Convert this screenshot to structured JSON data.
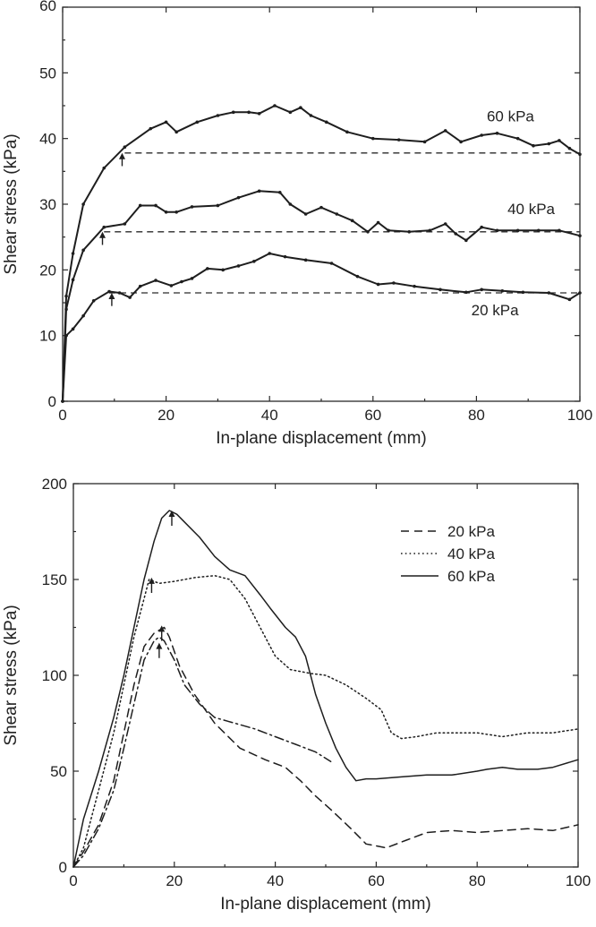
{
  "chart_data": [
    {
      "type": "line",
      "xlabel": "In-plane displacement (mm)",
      "ylabel": "Shear stress (kPa)",
      "xlim": [
        0,
        100
      ],
      "ylim": [
        0,
        60
      ],
      "xticks": [
        0,
        20,
        40,
        60,
        80,
        100
      ],
      "yticks": [
        0,
        10,
        20,
        30,
        40,
        50,
        60
      ],
      "legend": "none",
      "series": [
        {
          "name": "60 kPa",
          "style": "solid-markers",
          "x": [
            0,
            0.7,
            2,
            4,
            8,
            12,
            17,
            20,
            22,
            26,
            30,
            33,
            36,
            38,
            41,
            44,
            46,
            48,
            51,
            55,
            60,
            65,
            70,
            74,
            77,
            81,
            84,
            88,
            91,
            94,
            96,
            98,
            100
          ],
          "y": [
            0,
            16,
            22.5,
            30,
            35.5,
            38.7,
            41.5,
            42.5,
            41,
            42.5,
            43.5,
            44,
            44,
            43.8,
            45,
            44,
            44.7,
            43.5,
            42.5,
            41,
            40,
            39.8,
            39.5,
            41.2,
            39.5,
            40.5,
            40.8,
            40,
            38.9,
            39.2,
            39.7,
            38.5,
            37.6
          ]
        },
        {
          "name": "40 kPa",
          "style": "solid-markers",
          "x": [
            0,
            0.7,
            2,
            4,
            8,
            12,
            15,
            18,
            20,
            22,
            25,
            30,
            34,
            38,
            42,
            44,
            47,
            50,
            53,
            56,
            59,
            61,
            63,
            67,
            71,
            74,
            76,
            78,
            81,
            84,
            88,
            92,
            96,
            100
          ],
          "y": [
            0,
            14,
            18.5,
            23,
            26.5,
            27,
            29.8,
            29.8,
            28.8,
            28.8,
            29.6,
            29.8,
            31,
            32,
            31.8,
            30,
            28.5,
            29.5,
            28.5,
            27.5,
            25.8,
            27.2,
            26,
            25.8,
            26,
            27,
            25.5,
            24.5,
            26.5,
            26,
            26,
            26,
            26,
            25.2
          ]
        },
        {
          "name": "20 kPa",
          "style": "solid-markers",
          "x": [
            0,
            0.7,
            2,
            4,
            6,
            9,
            11,
            13,
            15,
            18,
            21,
            23,
            25,
            28,
            31,
            34,
            37,
            40,
            43,
            47,
            52,
            57,
            61,
            64,
            68,
            73,
            78,
            81,
            85,
            89,
            94,
            98,
            100
          ],
          "y": [
            0,
            10,
            11,
            13,
            15.3,
            16.7,
            16.5,
            15.8,
            17.5,
            18.4,
            17.6,
            18.2,
            18.7,
            20.2,
            20,
            20.6,
            21.3,
            22.5,
            22,
            21.5,
            21,
            19,
            17.8,
            18,
            17.5,
            17,
            16.6,
            17,
            16.8,
            16.6,
            16.5,
            15.5,
            16.5
          ]
        }
      ],
      "reference_lines": [
        {
          "label": "60 kPa",
          "y": 37.8,
          "x_start": 12,
          "x_end": 100
        },
        {
          "label": "40 kPa",
          "y": 25.8,
          "x_start": 8,
          "x_end": 100
        },
        {
          "label": "20 kPa",
          "y": 16.5,
          "x_start": 9,
          "x_end": 100
        }
      ],
      "arrows": [
        {
          "x": 11.5,
          "y_tail": 35.8,
          "y_head": 37.8
        },
        {
          "x": 7.7,
          "y_tail": 23.8,
          "y_head": 25.8
        },
        {
          "x": 9.5,
          "y_tail": 14.5,
          "y_head": 16.5
        }
      ],
      "annotations": [
        {
          "text": "60 kPa",
          "x": 82,
          "y": 42.6
        },
        {
          "text": "40 kPa",
          "x": 86,
          "y": 28.5
        },
        {
          "text": "20 kPa",
          "x": 79,
          "y": 13.1
        }
      ]
    },
    {
      "type": "line",
      "xlabel": "In-plane displacement (mm)",
      "ylabel": "Shear stress (kPa)",
      "xlim": [
        0,
        100
      ],
      "ylim": [
        0,
        200
      ],
      "xticks": [
        0,
        20,
        40,
        60,
        80,
        100
      ],
      "yticks": [
        0,
        50,
        100,
        150,
        200
      ],
      "legend": "top-right",
      "series": [
        {
          "name": "20 kPa",
          "style": "dashed",
          "x": [
            0,
            2,
            5,
            8,
            10,
            12,
            14,
            16,
            18,
            19,
            21,
            24,
            28,
            33,
            38,
            42,
            45,
            48,
            51,
            55,
            58,
            62,
            66,
            70,
            75,
            80,
            85,
            90,
            95,
            100
          ],
          "y": [
            0,
            8,
            22,
            45,
            70,
            95,
            115,
            122,
            125,
            120,
            105,
            90,
            75,
            62,
            56,
            52,
            45,
            37,
            30,
            20,
            12,
            10,
            14,
            18,
            19,
            18,
            19,
            20,
            19,
            22
          ]
        },
        {
          "name": "20 kPa",
          "style": "dash-dot",
          "x": [
            0,
            2,
            5,
            8,
            10,
            12,
            14,
            16,
            17,
            18,
            20,
            22,
            25,
            28,
            32,
            36,
            40,
            44,
            48,
            51
          ],
          "y": [
            0,
            6,
            20,
            40,
            62,
            85,
            108,
            118,
            120,
            118,
            108,
            95,
            85,
            78,
            75,
            72,
            68,
            64,
            60,
            55
          ]
        },
        {
          "name": "40 kPa",
          "style": "dotted",
          "x": [
            0,
            2,
            5,
            8,
            10,
            12,
            14,
            15,
            17,
            20,
            24,
            28,
            31,
            34,
            37,
            40,
            43,
            47,
            50,
            54,
            58,
            61,
            63,
            65,
            68,
            72,
            76,
            80,
            85,
            90,
            95,
            100
          ],
          "y": [
            0,
            10,
            40,
            70,
            95,
            120,
            140,
            150,
            148,
            149,
            151,
            152,
            150,
            140,
            125,
            110,
            103,
            101,
            100,
            95,
            88,
            82,
            70,
            67,
            68,
            70,
            70,
            70,
            68,
            70,
            70,
            72
          ]
        },
        {
          "name": "60 kPa",
          "style": "solid",
          "x": [
            0,
            2,
            5,
            8,
            10,
            12,
            14,
            16,
            17.5,
            19,
            20.5,
            22,
            25,
            28,
            31,
            34,
            37,
            39,
            42,
            44,
            46,
            47,
            48,
            50,
            52,
            54,
            56,
            58,
            60,
            65,
            70,
            75,
            80,
            82,
            85,
            88,
            92,
            95,
            100
          ],
          "y": [
            0,
            25,
            50,
            78,
            100,
            125,
            150,
            170,
            182,
            186,
            184,
            180,
            172,
            162,
            155,
            152,
            142,
            135,
            125,
            120,
            110,
            100,
            90,
            75,
            62,
            52,
            45,
            46,
            46,
            47,
            48,
            48,
            50,
            51,
            52,
            51,
            51,
            52,
            56
          ]
        }
      ],
      "arrows": [
        {
          "x": 19.5,
          "y_tail": 178,
          "y_head": 186
        },
        {
          "x": 15.5,
          "y_tail": 143,
          "y_head": 151
        },
        {
          "x": 17.5,
          "y_tail": 118,
          "y_head": 126
        },
        {
          "x": 17,
          "y_tail": 109,
          "y_head": 117
        }
      ]
    }
  ],
  "legend_items": [
    "20 kPa",
    "40 kPa",
    "60 kPa"
  ]
}
